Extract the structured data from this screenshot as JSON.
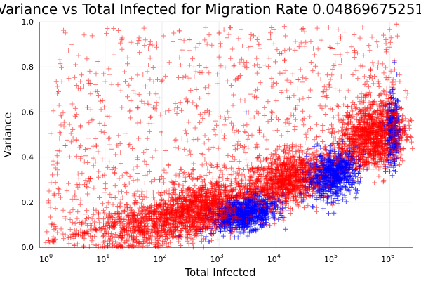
{
  "chart_data": {
    "type": "scatter",
    "title": "Variance vs Total Infected for Migration Rate 0.04869675251",
    "xlabel": "Total Infected",
    "ylabel": "Variance",
    "x_scale": "log10",
    "xlim": [
      0.7,
      2500000
    ],
    "ylim": [
      0,
      1
    ],
    "x_ticks": [
      {
        "base": "10",
        "exp": "0"
      },
      {
        "base": "10",
        "exp": "1"
      },
      {
        "base": "10",
        "exp": "2"
      },
      {
        "base": "10",
        "exp": "3"
      },
      {
        "base": "10",
        "exp": "4"
      },
      {
        "base": "10",
        "exp": "5"
      },
      {
        "base": "10",
        "exp": "6"
      }
    ],
    "y_ticks": [
      "0.0",
      "0.2",
      "0.4",
      "0.6",
      "0.8",
      "1.0"
    ],
    "grid": true,
    "legend": "none",
    "marker": "+",
    "series": [
      {
        "color": "#0000ff",
        "clusters": [
          {
            "log_x_center": 3.45,
            "y_center": 0.15,
            "log_x_spread": 0.28,
            "y_spread": 0.035,
            "count": 900
          },
          {
            "log_x_center": 5.0,
            "y_center": 0.32,
            "log_x_spread": 0.22,
            "y_spread": 0.05,
            "count": 700
          },
          {
            "log_x_center": 6.05,
            "y_center": 0.5,
            "log_x_spread": 0.06,
            "y_spread": 0.08,
            "count": 250
          }
        ],
        "outlier_examples": [
          [
            3000,
            0.6
          ],
          [
            200,
            0.05
          ],
          [
            150000,
            0.47
          ],
          [
            1200000,
            0.82
          ]
        ]
      },
      {
        "color": "#ff0000",
        "clusters": [
          {
            "log_x_center": 1.8,
            "y_center": 0.1,
            "log_x_spread": 0.6,
            "y_spread": 0.05,
            "count": 700
          },
          {
            "log_x_center": 2.7,
            "y_center": 0.17,
            "log_x_spread": 0.45,
            "y_spread": 0.06,
            "count": 1100
          },
          {
            "log_x_center": 4.2,
            "y_center": 0.3,
            "log_x_spread": 0.35,
            "y_spread": 0.06,
            "count": 1000
          },
          {
            "log_x_center": 5.7,
            "y_center": 0.5,
            "log_x_spread": 0.3,
            "y_spread": 0.07,
            "count": 1100
          }
        ],
        "outlier_examples": [
          [
            200,
            0.96
          ],
          [
            1000,
            0.95
          ],
          [
            30000,
            0.97
          ],
          [
            300,
            0.92
          ],
          [
            1300000,
            0.99
          ],
          [
            15,
            0.15
          ],
          [
            2,
            0.45
          ],
          [
            3,
            0.58
          ],
          [
            25,
            0.84
          ],
          [
            60,
            0.9
          ],
          [
            5000,
            0.9
          ],
          [
            100000,
            0.88
          ],
          [
            1,
            0.0
          ],
          [
            4,
            0.05
          ],
          [
            400,
            0.7
          ]
        ],
        "scatter_band": {
          "log_x_min": 0.0,
          "log_x_max": 6.2,
          "y_floor": 0.0,
          "count": 1500
        }
      }
    ]
  }
}
